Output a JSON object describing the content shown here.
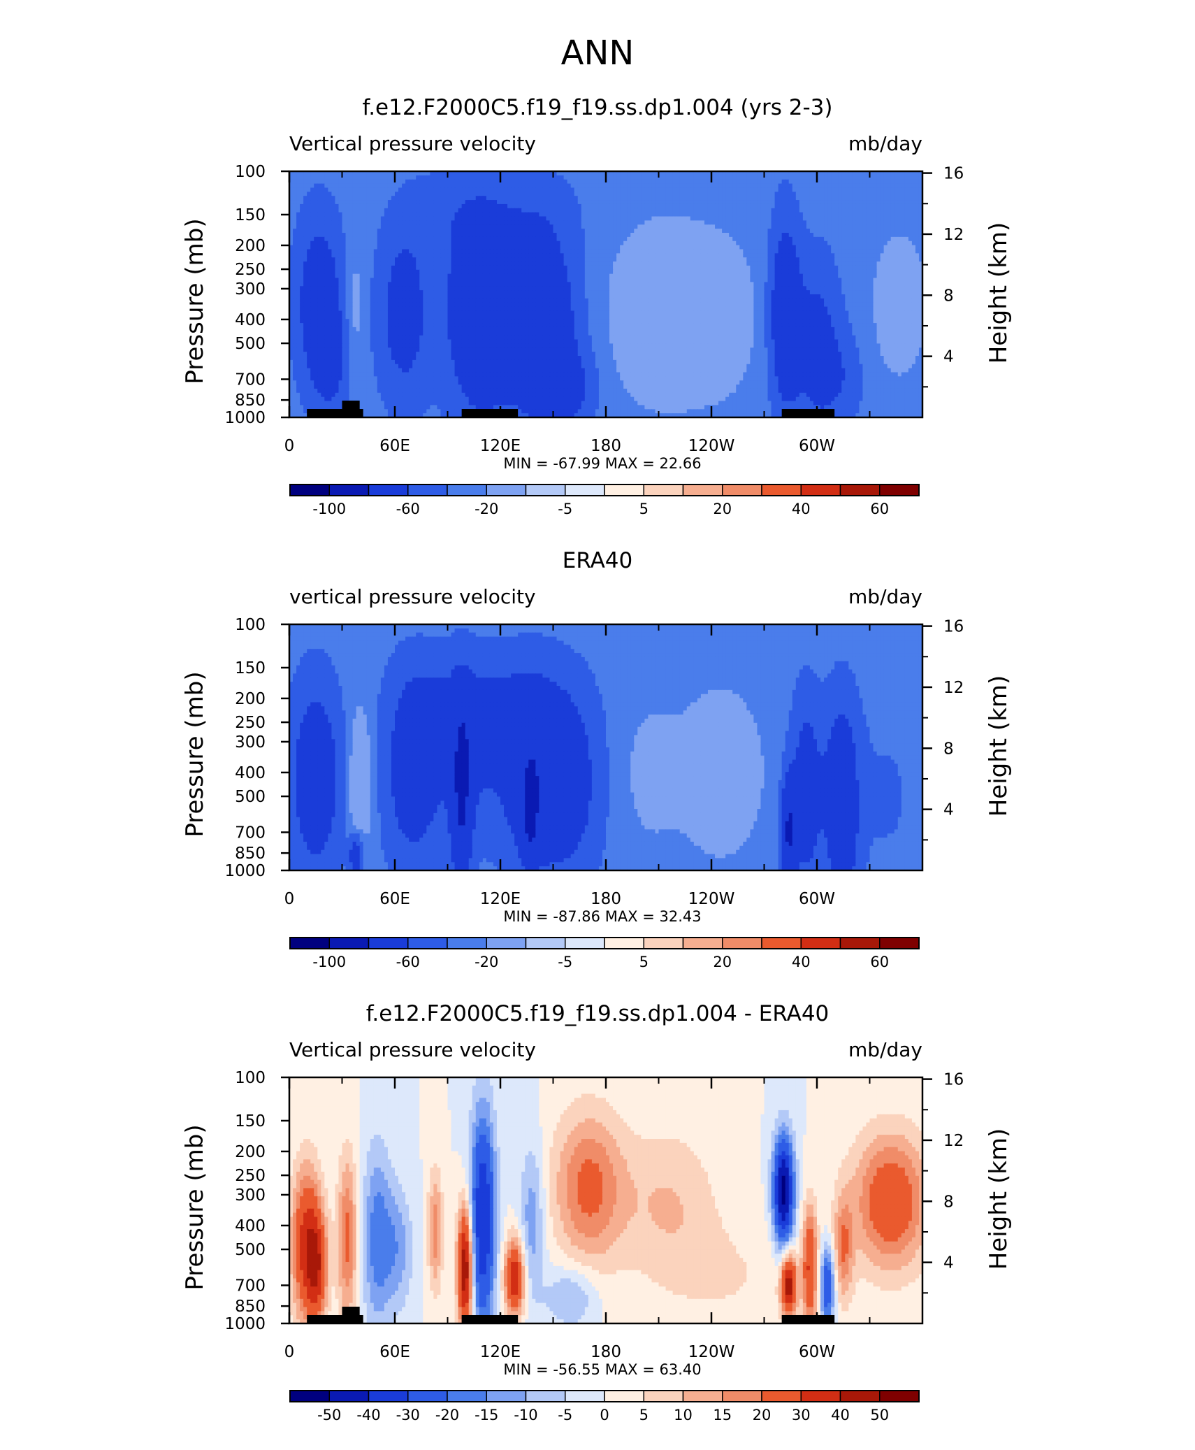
{
  "figure": {
    "title": "ANN"
  },
  "palettes": {
    "main": [
      "#00007f",
      "#0a1ab3",
      "#1a3cd9",
      "#2e5ce6",
      "#4a7deb",
      "#7ea2f2",
      "#b3c9f7",
      "#dde8fb",
      "#fff0e3",
      "#fbd3bd",
      "#f6ae90",
      "#f08c68",
      "#ea5a2e",
      "#d22e14",
      "#a81808",
      "#7f0000"
    ],
    "diff": [
      "#00007f",
      "#0a1ab3",
      "#1a3cd9",
      "#2e5ce6",
      "#4a7deb",
      "#7ea2f2",
      "#b3c9f7",
      "#dde8fb",
      "#fff0e3",
      "#fbd3bd",
      "#f6ae90",
      "#f08c68",
      "#ea5a2e",
      "#d22e14",
      "#a81808",
      "#7f0000"
    ]
  },
  "chart_data": [
    {
      "type": "heatmap",
      "title": "f.e12.F2000C5.f19_f19.ss.dp1.004 (yrs 2-3)",
      "left_label": "Vertical pressure velocity",
      "right_label": "mb/day",
      "ylabel": "Pressure (mb)",
      "y2label": "Height (km)",
      "x_ticks": [
        "0",
        "60E",
        "120E",
        "180",
        "120W",
        "60W"
      ],
      "x_tick_values": [
        0,
        60,
        120,
        180,
        240,
        300
      ],
      "xlim": [
        0,
        360
      ],
      "y_ticks": [
        "100",
        "150",
        "200",
        "250",
        "300",
        "400",
        "500",
        "700",
        "850",
        "1000"
      ],
      "y_tick_values": [
        100,
        150,
        200,
        250,
        300,
        400,
        500,
        700,
        850,
        1000
      ],
      "ylim": [
        1000,
        100
      ],
      "y_scale": "log",
      "y2_ticks": [
        "16",
        "12",
        "8",
        "4"
      ],
      "y2_tick_values": [
        16,
        12,
        8,
        4
      ],
      "minmax_text": "MIN = -67.99   MAX =  22.66",
      "colorbar_labels": [
        "-100",
        "-60",
        "-20",
        "-5",
        "5",
        "20",
        "40",
        "60"
      ],
      "colorbar_levels": [
        -100,
        -60,
        -20,
        -5,
        5,
        20,
        40,
        60
      ],
      "palette": "main",
      "topography": true,
      "blobs": [
        {
          "lon": 17,
          "p": 340,
          "lonw": 9,
          "pw": 0.55,
          "amp": -38
        },
        {
          "lon": 24,
          "p": 600,
          "lonw": 7,
          "pw": 0.35,
          "amp": -20
        },
        {
          "lon": 37,
          "p": 360,
          "lonw": 4,
          "pw": 0.4,
          "amp": 12
        },
        {
          "lon": 65,
          "p": 380,
          "lonw": 10,
          "pw": 0.55,
          "amp": -32
        },
        {
          "lon": 108,
          "p": 380,
          "lonw": 13,
          "pw": 0.65,
          "amp": -48
        },
        {
          "lon": 143,
          "p": 430,
          "lonw": 14,
          "pw": 0.6,
          "amp": -52
        },
        {
          "lon": 160,
          "p": 760,
          "lonw": 10,
          "pw": 0.25,
          "amp": -22
        },
        {
          "lon": 130,
          "p": 150,
          "lonw": 25,
          "pw": 0.3,
          "amp": -10
        },
        {
          "lon": 85,
          "p": 150,
          "lonw": 15,
          "pw": 0.3,
          "amp": -8
        },
        {
          "lon": 215,
          "p": 380,
          "lonw": 30,
          "pw": 0.7,
          "amp": 12
        },
        {
          "lon": 246,
          "p": 390,
          "lonw": 11,
          "pw": 0.4,
          "amp": 10
        },
        {
          "lon": 282,
          "p": 380,
          "lonw": 6,
          "pw": 0.6,
          "amp": -45
        },
        {
          "lon": 300,
          "p": 520,
          "lonw": 9,
          "pw": 0.55,
          "amp": -30
        },
        {
          "lon": 315,
          "p": 700,
          "lonw": 8,
          "pw": 0.3,
          "amp": -14
        },
        {
          "lon": 347,
          "p": 350,
          "lonw": 13,
          "pw": 0.55,
          "amp": 10
        }
      ]
    },
    {
      "type": "heatmap",
      "title": "ERA40",
      "left_label": "vertical pressure velocity",
      "right_label": "mb/day",
      "ylabel": "Pressure (mb)",
      "y2label": "Height (km)",
      "x_ticks": [
        "0",
        "60E",
        "120E",
        "180",
        "120W",
        "60W"
      ],
      "x_tick_values": [
        0,
        60,
        120,
        180,
        240,
        300
      ],
      "xlim": [
        0,
        360
      ],
      "y_ticks": [
        "100",
        "150",
        "200",
        "250",
        "300",
        "400",
        "500",
        "700",
        "850",
        "1000"
      ],
      "y_tick_values": [
        100,
        150,
        200,
        250,
        300,
        400,
        500,
        700,
        850,
        1000
      ],
      "ylim": [
        1000,
        100
      ],
      "y_scale": "log",
      "y2_ticks": [
        "16",
        "12",
        "8",
        "4"
      ],
      "y2_tick_values": [
        16,
        12,
        8,
        4
      ],
      "minmax_text": "MIN = -87.86   MAX =  32.43",
      "colorbar_labels": [
        "-100",
        "-60",
        "-20",
        "-5",
        "5",
        "20",
        "40",
        "60"
      ],
      "colorbar_levels": [
        -100,
        -60,
        -20,
        -5,
        5,
        20,
        40,
        60
      ],
      "palette": "main",
      "topography": false,
      "blobs": [
        {
          "lon": 15,
          "p": 420,
          "lonw": 10,
          "pw": 0.6,
          "amp": -40
        },
        {
          "lon": 40,
          "p": 450,
          "lonw": 5,
          "pw": 0.5,
          "amp": 20
        },
        {
          "lon": 38,
          "p": 880,
          "lonw": 3,
          "pw": 0.15,
          "amp": -40
        },
        {
          "lon": 70,
          "p": 400,
          "lonw": 11,
          "pw": 0.6,
          "amp": -35
        },
        {
          "lon": 98,
          "p": 500,
          "lonw": 4,
          "pw": 0.6,
          "amp": -55
        },
        {
          "lon": 102,
          "p": 330,
          "lonw": 14,
          "pw": 0.55,
          "amp": -22
        },
        {
          "lon": 138,
          "p": 420,
          "lonw": 12,
          "pw": 0.6,
          "amp": -40
        },
        {
          "lon": 137,
          "p": 600,
          "lonw": 3,
          "pw": 0.3,
          "amp": -45
        },
        {
          "lon": 160,
          "p": 450,
          "lonw": 12,
          "pw": 0.6,
          "amp": -30
        },
        {
          "lon": 125,
          "p": 230,
          "lonw": 22,
          "pw": 0.35,
          "amp": -18
        },
        {
          "lon": 80,
          "p": 200,
          "lonw": 15,
          "pw": 0.3,
          "amp": -10
        },
        {
          "lon": 205,
          "p": 400,
          "lonw": 12,
          "pw": 0.5,
          "amp": 8
        },
        {
          "lon": 245,
          "p": 400,
          "lonw": 17,
          "pw": 0.55,
          "amp": 14
        },
        {
          "lon": 284,
          "p": 700,
          "lonw": 3,
          "pw": 0.35,
          "amp": -60
        },
        {
          "lon": 294,
          "p": 480,
          "lonw": 6,
          "pw": 0.6,
          "amp": -35
        },
        {
          "lon": 314,
          "p": 480,
          "lonw": 7,
          "pw": 0.6,
          "amp": -40
        },
        {
          "lon": 315,
          "p": 800,
          "lonw": 4,
          "pw": 0.2,
          "amp": -30
        },
        {
          "lon": 340,
          "p": 500,
          "lonw": 14,
          "pw": 0.6,
          "amp": -6
        }
      ]
    },
    {
      "type": "heatmap",
      "title": "f.e12.F2000C5.f19_f19.ss.dp1.004 - ERA40",
      "left_label": "Vertical pressure velocity",
      "right_label": "mb/day",
      "ylabel": "Pressure (mb)",
      "y2label": "Height (km)",
      "x_ticks": [
        "0",
        "60E",
        "120E",
        "180",
        "120W",
        "60W"
      ],
      "x_tick_values": [
        0,
        60,
        120,
        180,
        240,
        300
      ],
      "xlim": [
        0,
        360
      ],
      "y_ticks": [
        "100",
        "150",
        "200",
        "250",
        "300",
        "400",
        "500",
        "700",
        "850",
        "1000"
      ],
      "y_tick_values": [
        100,
        150,
        200,
        250,
        300,
        400,
        500,
        700,
        850,
        1000
      ],
      "ylim": [
        1000,
        100
      ],
      "y_scale": "log",
      "y2_ticks": [
        "16",
        "12",
        "8",
        "4"
      ],
      "y2_tick_values": [
        16,
        12,
        8,
        4
      ],
      "minmax_text": "MIN = -56.55   MAX =  63.40",
      "colorbar_labels": [
        "-50",
        "-40",
        "-30",
        "-20",
        "-15",
        "-10",
        "-5",
        "0",
        "5",
        "10",
        "15",
        "20",
        "30",
        "40",
        "50"
      ],
      "colorbar_levels": [
        -50,
        -40,
        -30,
        -20,
        -15,
        -10,
        -5,
        0,
        5,
        10,
        15,
        20,
        30,
        40,
        50
      ],
      "palette": "diff",
      "topography": true,
      "blobs": [
        {
          "lon": 10,
          "p": 480,
          "lonw": 6,
          "pw": 0.5,
          "amp": 35
        },
        {
          "lon": 16,
          "p": 600,
          "lonw": 4,
          "pw": 0.35,
          "amp": 25
        },
        {
          "lon": 33,
          "p": 450,
          "lonw": 4,
          "pw": 0.55,
          "amp": 22
        },
        {
          "lon": 50,
          "p": 450,
          "lonw": 6,
          "pw": 0.6,
          "amp": -18
        },
        {
          "lon": 62,
          "p": 500,
          "lonw": 6,
          "pw": 0.4,
          "amp": -12
        },
        {
          "lon": 83,
          "p": 420,
          "lonw": 3,
          "pw": 0.4,
          "amp": 18
        },
        {
          "lon": 100,
          "p": 600,
          "lonw": 3,
          "pw": 0.4,
          "amp": 50
        },
        {
          "lon": 110,
          "p": 380,
          "lonw": 5,
          "pw": 0.7,
          "amp": -40
        },
        {
          "lon": 128,
          "p": 650,
          "lonw": 4,
          "pw": 0.25,
          "amp": 38
        },
        {
          "lon": 138,
          "p": 380,
          "lonw": 5,
          "pw": 0.5,
          "amp": -14
        },
        {
          "lon": 170,
          "p": 280,
          "lonw": 14,
          "pw": 0.5,
          "amp": 22
        },
        {
          "lon": 215,
          "p": 320,
          "lonw": 20,
          "pw": 0.5,
          "amp": 10
        },
        {
          "lon": 160,
          "p": 780,
          "lonw": 10,
          "pw": 0.2,
          "amp": -12
        },
        {
          "lon": 281,
          "p": 290,
          "lonw": 4,
          "pw": 0.35,
          "amp": -55
        },
        {
          "lon": 284,
          "p": 700,
          "lonw": 3,
          "pw": 0.2,
          "amp": 45
        },
        {
          "lon": 296,
          "p": 600,
          "lonw": 3,
          "pw": 0.4,
          "amp": 30
        },
        {
          "lon": 306,
          "p": 700,
          "lonw": 3,
          "pw": 0.25,
          "amp": -30
        },
        {
          "lon": 315,
          "p": 500,
          "lonw": 4,
          "pw": 0.35,
          "amp": 18
        },
        {
          "lon": 342,
          "p": 320,
          "lonw": 15,
          "pw": 0.45,
          "amp": 28
        },
        {
          "lon": 250,
          "p": 650,
          "lonw": 30,
          "pw": 0.4,
          "amp": 5
        }
      ]
    }
  ]
}
